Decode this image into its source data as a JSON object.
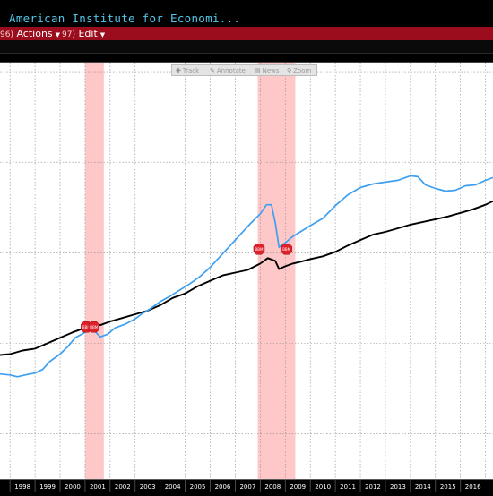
{
  "window": {
    "title": "American Institute for Economi..."
  },
  "menu": {
    "actions": {
      "num": "96)",
      "label": "Actions"
    },
    "edit": {
      "num": "97)",
      "label": "Edit"
    }
  },
  "chart_toolbar": {
    "track": {
      "label": "Track",
      "icon": "plus-icon"
    },
    "annotate": {
      "label": "Annotate",
      "icon": "pencil-icon"
    },
    "news": {
      "label": "News",
      "icon": "news-icon"
    },
    "zoom": {
      "label": "Zoom",
      "icon": "magnifier-icon"
    }
  },
  "colors": {
    "series_black": "#000000",
    "series_blue": "#3d9ff0",
    "recession": "#ffc8c8",
    "event_marker": "#e0202a"
  },
  "chart_data": {
    "type": "line",
    "x_tick_labels": [
      "1998",
      "1999",
      "2000",
      "2001",
      "2002",
      "2003",
      "2004",
      "2005",
      "2006",
      "2007",
      "2008",
      "2009",
      "2010",
      "2011",
      "2012",
      "2013",
      "2014",
      "2015",
      "2016"
    ],
    "xlim": [
      1997.6,
      2017.3
    ],
    "ylim": [
      0,
      4.6
    ],
    "grid": true,
    "recessions": [
      [
        2001.0,
        2001.75
      ],
      [
        2007.9,
        2009.4
      ]
    ],
    "event_markers": [
      {
        "x": 2001.05,
        "y": 1.68,
        "label": "BBM"
      },
      {
        "x": 2001.35,
        "y": 1.68,
        "label": "BBM"
      },
      {
        "x": 2007.95,
        "y": 2.54,
        "label": "BBM"
      },
      {
        "x": 2009.05,
        "y": 2.54,
        "label": "BBM"
      }
    ],
    "series": [
      {
        "color": "#000000",
        "points": [
          [
            1997.6,
            1.37
          ],
          [
            1998.0,
            1.38
          ],
          [
            1998.5,
            1.42
          ],
          [
            1999.0,
            1.44
          ],
          [
            1999.5,
            1.5
          ],
          [
            2000.0,
            1.56
          ],
          [
            2000.5,
            1.62
          ],
          [
            2001.0,
            1.67
          ],
          [
            2001.3,
            1.72
          ],
          [
            2001.6,
            1.7
          ],
          [
            2002.0,
            1.74
          ],
          [
            2002.5,
            1.78
          ],
          [
            2003.0,
            1.82
          ],
          [
            2003.5,
            1.86
          ],
          [
            2004.0,
            1.92
          ],
          [
            2004.5,
            2.0
          ],
          [
            2005.0,
            2.05
          ],
          [
            2005.5,
            2.13
          ],
          [
            2006.0,
            2.19
          ],
          [
            2006.5,
            2.25
          ],
          [
            2007.0,
            2.28
          ],
          [
            2007.5,
            2.31
          ],
          [
            2008.0,
            2.38
          ],
          [
            2008.3,
            2.44
          ],
          [
            2008.6,
            2.41
          ],
          [
            2008.75,
            2.32
          ],
          [
            2009.0,
            2.35
          ],
          [
            2009.3,
            2.38
          ],
          [
            2009.6,
            2.4
          ],
          [
            2010.0,
            2.43
          ],
          [
            2010.5,
            2.46
          ],
          [
            2011.0,
            2.51
          ],
          [
            2011.5,
            2.58
          ],
          [
            2012.0,
            2.64
          ],
          [
            2012.5,
            2.7
          ],
          [
            2013.0,
            2.73
          ],
          [
            2013.5,
            2.77
          ],
          [
            2014.0,
            2.81
          ],
          [
            2014.5,
            2.84
          ],
          [
            2015.0,
            2.87
          ],
          [
            2015.5,
            2.9
          ],
          [
            2016.0,
            2.94
          ],
          [
            2016.5,
            2.98
          ],
          [
            2017.0,
            3.03
          ],
          [
            2017.3,
            3.07
          ]
        ]
      },
      {
        "color": "#3d9ff0",
        "points": [
          [
            1997.6,
            1.16
          ],
          [
            1998.0,
            1.15
          ],
          [
            1998.3,
            1.13
          ],
          [
            1998.6,
            1.15
          ],
          [
            1999.0,
            1.17
          ],
          [
            1999.3,
            1.21
          ],
          [
            1999.6,
            1.3
          ],
          [
            2000.0,
            1.38
          ],
          [
            2000.3,
            1.46
          ],
          [
            2000.6,
            1.56
          ],
          [
            2001.0,
            1.62
          ],
          [
            2001.3,
            1.66
          ],
          [
            2001.6,
            1.57
          ],
          [
            2001.9,
            1.6
          ],
          [
            2002.2,
            1.67
          ],
          [
            2002.6,
            1.71
          ],
          [
            2003.0,
            1.77
          ],
          [
            2003.3,
            1.83
          ],
          [
            2003.6,
            1.88
          ],
          [
            2004.0,
            1.96
          ],
          [
            2004.4,
            2.02
          ],
          [
            2004.8,
            2.09
          ],
          [
            2005.2,
            2.16
          ],
          [
            2005.6,
            2.24
          ],
          [
            2006.0,
            2.34
          ],
          [
            2006.4,
            2.46
          ],
          [
            2006.8,
            2.58
          ],
          [
            2007.2,
            2.7
          ],
          [
            2007.6,
            2.82
          ],
          [
            2008.0,
            2.93
          ],
          [
            2008.25,
            3.03
          ],
          [
            2008.45,
            3.03
          ],
          [
            2008.6,
            2.83
          ],
          [
            2008.75,
            2.56
          ],
          [
            2009.0,
            2.61
          ],
          [
            2009.3,
            2.68
          ],
          [
            2009.6,
            2.73
          ],
          [
            2010.0,
            2.8
          ],
          [
            2010.5,
            2.88
          ],
          [
            2011.0,
            3.02
          ],
          [
            2011.5,
            3.14
          ],
          [
            2012.0,
            3.22
          ],
          [
            2012.5,
            3.26
          ],
          [
            2013.0,
            3.28
          ],
          [
            2013.5,
            3.3
          ],
          [
            2014.0,
            3.35
          ],
          [
            2014.3,
            3.34
          ],
          [
            2014.6,
            3.25
          ],
          [
            2015.0,
            3.21
          ],
          [
            2015.4,
            3.18
          ],
          [
            2015.8,
            3.19
          ],
          [
            2016.2,
            3.24
          ],
          [
            2016.6,
            3.25
          ],
          [
            2017.0,
            3.3
          ],
          [
            2017.3,
            3.33
          ]
        ]
      }
    ]
  }
}
